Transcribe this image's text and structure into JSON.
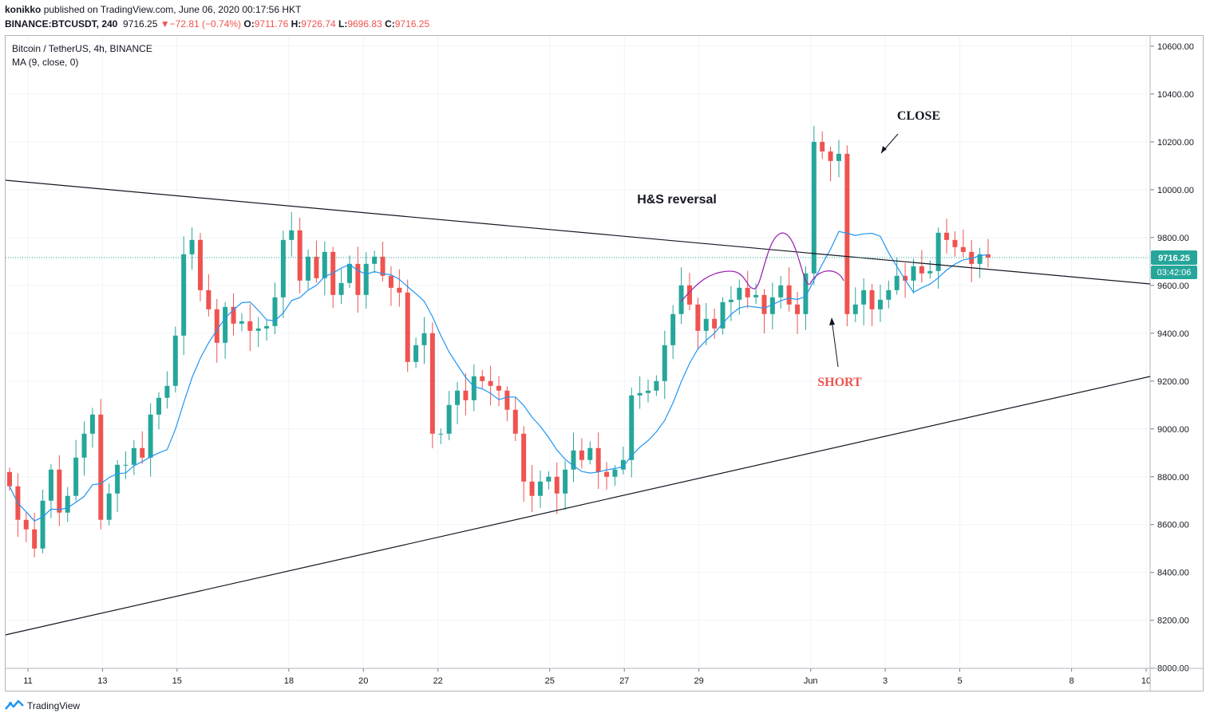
{
  "header": {
    "publisher_user": "konikko",
    "publisher_text": " published on TradingView.com, June 06, 2020 00:17:56 HKT",
    "symbol_line": "BINANCE:BTCUSDT, 240",
    "last": "9716.25",
    "change_arrow": "▼",
    "change": "−72.81 (−0.74%)",
    "o_label": "O:",
    "o_value": "9711.76",
    "h_label": "H:",
    "h_value": "9726.74",
    "l_label": "L:",
    "l_value": "9696.83",
    "c_label": "C:",
    "c_value": "9716.25"
  },
  "legend": {
    "title": "Bitcoin / TetherUS, 4h, BINANCE",
    "ma": "MA (9, close, 0)"
  },
  "footer": {
    "brand": "TradingView",
    "icon": "tradingview-logo-icon"
  },
  "colors": {
    "up": "#26a69a",
    "down": "#ef5350",
    "ma": "#2196f3",
    "grid": "#f0f3fa",
    "trendline": "#131722",
    "hs": "#9c27b0",
    "last_price_bg": "#26a69a"
  },
  "chart_data": {
    "type": "candlestick",
    "title": "Bitcoin / TetherUS, 4h, BINANCE",
    "y_ticks": [
      "8000.00",
      "8200.00",
      "8400.00",
      "8600.00",
      "8800.00",
      "9000.00",
      "9200.00",
      "9400.00",
      "9600.00",
      "9800.00",
      "10000.00",
      "10200.00",
      "10400.00",
      "10600.00"
    ],
    "y_range": [
      7999,
      10643
    ],
    "x_ticks": [
      {
        "label": "11",
        "day": 11
      },
      {
        "label": "13",
        "day": 13
      },
      {
        "label": "15",
        "day": 15
      },
      {
        "label": "18",
        "day": 18
      },
      {
        "label": "20",
        "day": 20
      },
      {
        "label": "22",
        "day": 22
      },
      {
        "label": "25",
        "day": 25
      },
      {
        "label": "27",
        "day": 27
      },
      {
        "label": "29",
        "day": 29
      },
      {
        "label": "Jun",
        "day": 32
      },
      {
        "label": "3",
        "day": 34
      },
      {
        "label": "5",
        "day": 36
      },
      {
        "label": "8",
        "day": 39
      },
      {
        "label": "10",
        "day": 41
      }
    ],
    "last_price": "9716.25",
    "countdown": "03:42:06",
    "annotations": {
      "close": "CLOSE",
      "short": "SHORT",
      "pattern": "H&S reversal"
    },
    "closes": [
      8760,
      8620,
      8580,
      8500,
      8700,
      8830,
      8650,
      8720,
      8880,
      8980,
      9060,
      8620,
      8730,
      8850,
      8850,
      8920,
      8880,
      9060,
      9130,
      9180,
      9390,
      9730,
      9790,
      9580,
      9500,
      9360,
      9510,
      9440,
      9450,
      9410,
      9420,
      9430,
      9550,
      9790,
      9830,
      9620,
      9720,
      9630,
      9740,
      9560,
      9610,
      9690,
      9560,
      9690,
      9720,
      9640,
      9590,
      9570,
      9280,
      9350,
      9400,
      8980,
      8980,
      9100,
      9160,
      9120,
      9220,
      9200,
      9180,
      9160,
      9080,
      8980,
      8780,
      8720,
      8780,
      8800,
      8730,
      8830,
      8910,
      8870,
      8920,
      8820,
      8800,
      8830,
      8870,
      9140,
      9150,
      9160,
      9200,
      9350,
      9480,
      9600,
      9520,
      9410,
      9460,
      9420,
      9530,
      9540,
      9590,
      9550,
      9560,
      9480,
      9550,
      9600,
      9520,
      9480,
      9650,
      10200,
      10160,
      10120,
      10150,
      9480,
      9520,
      9580,
      9500,
      9540,
      9580,
      9640,
      9620,
      9680,
      9650,
      9660,
      9820,
      9790,
      9760,
      9740,
      9690,
      9730,
      9716.25
    ],
    "ma_label": "MA (9, close, 0)"
  }
}
